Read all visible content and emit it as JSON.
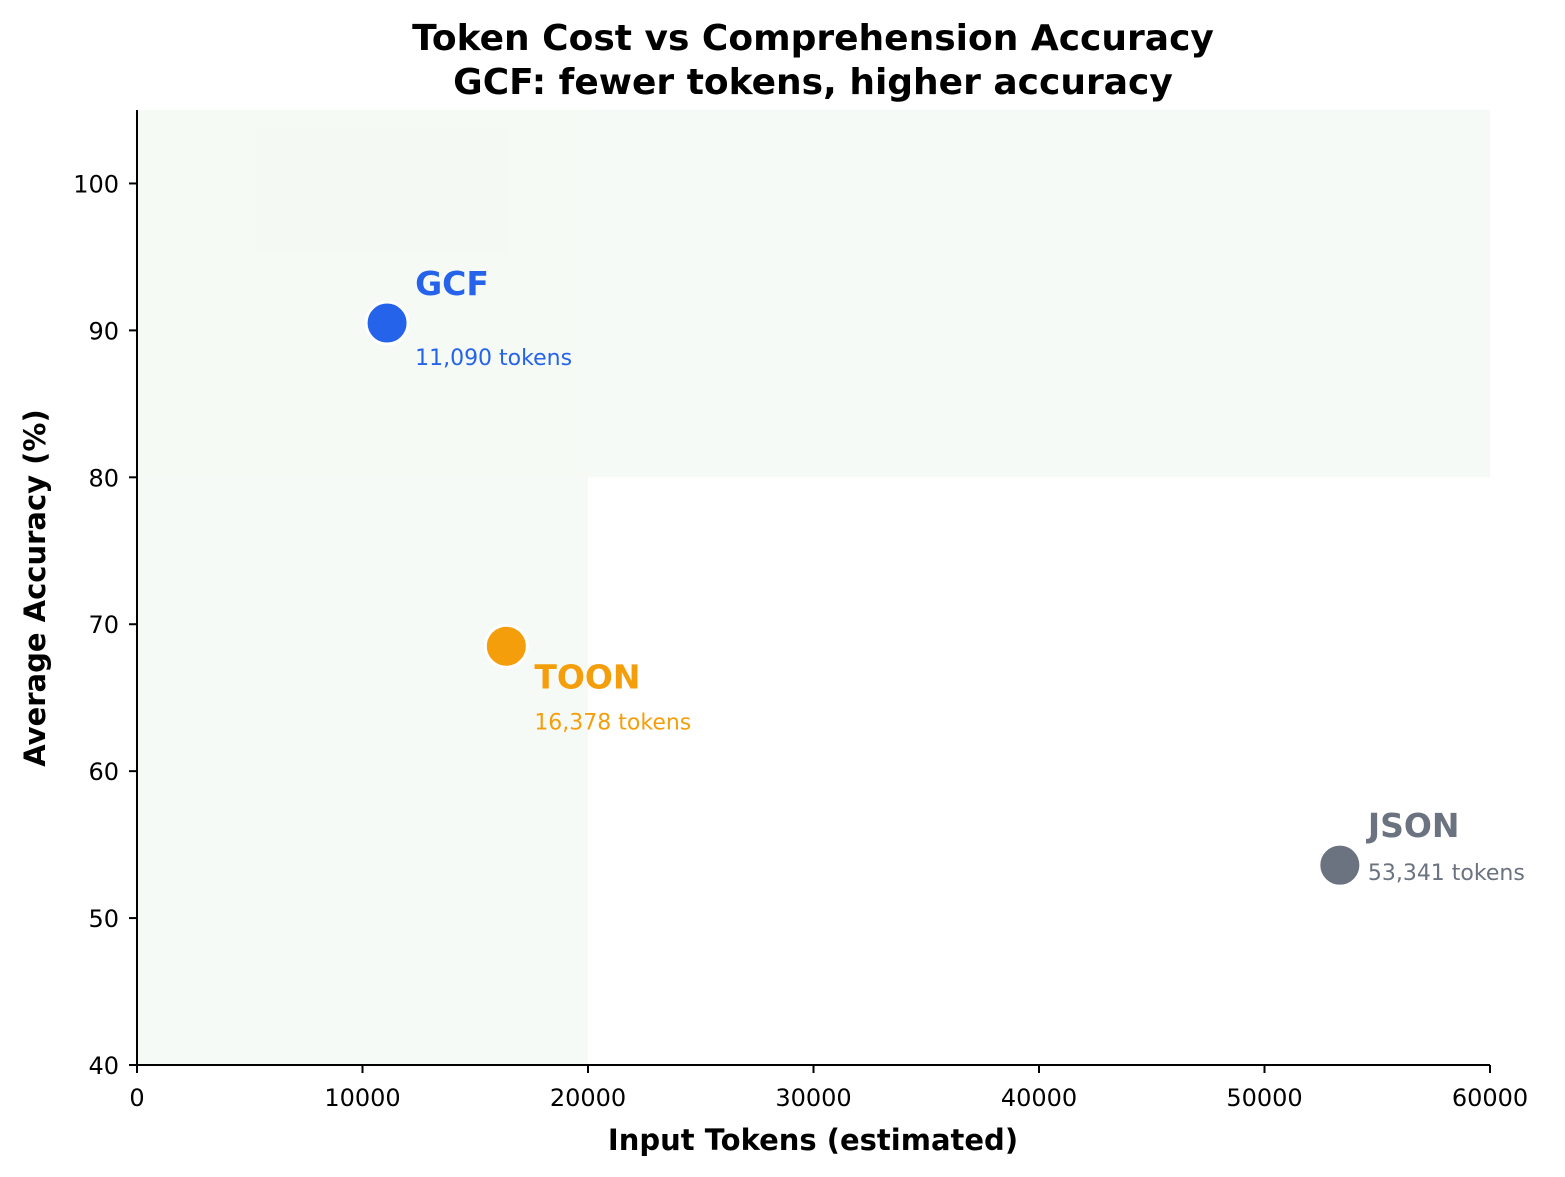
{
  "chart_data": {
    "type": "scatter",
    "title": "Token Cost vs Comprehension Accuracy",
    "subtitle": "GCF: fewer tokens, higher accuracy",
    "xlabel": "Input Tokens (estimated)",
    "ylabel": "Average Accuracy (%)",
    "xlim": [
      0,
      60000
    ],
    "ylim": [
      40,
      105
    ],
    "xticks": [
      0,
      10000,
      20000,
      30000,
      40000,
      50000,
      60000
    ],
    "yticks": [
      40,
      50,
      60,
      70,
      80,
      90,
      100
    ],
    "grid": false,
    "shaded_regions": [
      {
        "x": [
          0,
          20000
        ],
        "y": [
          40,
          105
        ],
        "color": "#f4f9f4"
      },
      {
        "x": [
          0,
          60000
        ],
        "y": [
          80,
          105
        ],
        "color": "#f4f9f4"
      }
    ],
    "points": [
      {
        "name": "GCF",
        "x": 11090,
        "y": 90.5,
        "label": "11,090 tokens",
        "color": "#2563eb"
      },
      {
        "name": "TOON",
        "x": 16378,
        "y": 68.5,
        "label": "16,378 tokens",
        "color": "#f59e0b"
      },
      {
        "name": "JSON",
        "x": 53341,
        "y": 53.6,
        "label": "53,341 tokens",
        "color": "#6b7280"
      }
    ]
  }
}
